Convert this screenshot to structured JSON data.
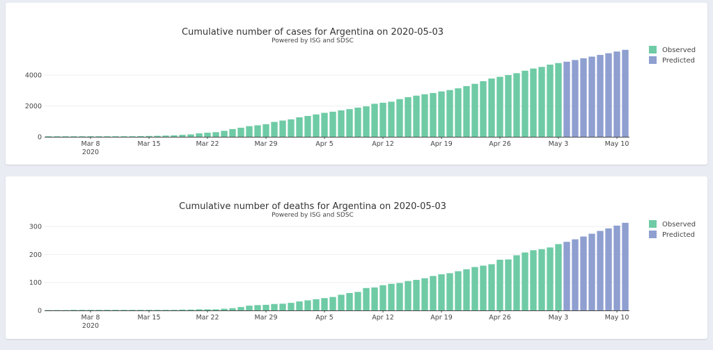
{
  "colors": {
    "observed": "#6ecba5",
    "predicted": "#8e9fd0"
  },
  "chart_data": [
    {
      "type": "bar",
      "title": "Cumulative number of cases for Argentina on 2020-05-03",
      "subtitle": "Powered by ISG and SDSC",
      "x_ticks": [
        "Mar 8",
        "Mar 15",
        "Mar 22",
        "Mar 29",
        "Apr 5",
        "Apr 12",
        "Apr 19",
        "Apr 26",
        "May 3",
        "May 10"
      ],
      "x_year_label": "2020",
      "y_ticks": [
        0,
        2000,
        4000
      ],
      "ylim": [
        0,
        5900
      ],
      "legend": [
        "Observed",
        "Predicted"
      ],
      "legend_position": "top-right",
      "series": [
        {
          "name": "Observed",
          "x": [
            "2020-03-03",
            "2020-03-04",
            "2020-03-05",
            "2020-03-06",
            "2020-03-07",
            "2020-03-08",
            "2020-03-09",
            "2020-03-10",
            "2020-03-11",
            "2020-03-12",
            "2020-03-13",
            "2020-03-14",
            "2020-03-15",
            "2020-03-16",
            "2020-03-17",
            "2020-03-18",
            "2020-03-19",
            "2020-03-20",
            "2020-03-21",
            "2020-03-22",
            "2020-03-23",
            "2020-03-24",
            "2020-03-25",
            "2020-03-26",
            "2020-03-27",
            "2020-03-28",
            "2020-03-29",
            "2020-03-30",
            "2020-03-31",
            "2020-04-01",
            "2020-04-02",
            "2020-04-03",
            "2020-04-04",
            "2020-04-05",
            "2020-04-06",
            "2020-04-07",
            "2020-04-08",
            "2020-04-09",
            "2020-04-10",
            "2020-04-11",
            "2020-04-12",
            "2020-04-13",
            "2020-04-14",
            "2020-04-15",
            "2020-04-16",
            "2020-04-17",
            "2020-04-18",
            "2020-04-19",
            "2020-04-20",
            "2020-04-21",
            "2020-04-22",
            "2020-04-23",
            "2020-04-24",
            "2020-04-25",
            "2020-04-26",
            "2020-04-27",
            "2020-04-28",
            "2020-04-29",
            "2020-04-30",
            "2020-05-01",
            "2020-05-02",
            "2020-05-03"
          ],
          "values": [
            1,
            1,
            2,
            8,
            9,
            12,
            17,
            19,
            21,
            31,
            34,
            45,
            56,
            65,
            79,
            97,
            128,
            158,
            225,
            266,
            301,
            387,
            502,
            589,
            690,
            745,
            820,
            966,
            1054,
            1133,
            1265,
            1353,
            1451,
            1554,
            1628,
            1715,
            1795,
            1894,
            1975,
            2142,
            2208,
            2277,
            2443,
            2571,
            2669,
            2758,
            2839,
            2941,
            3031,
            3144,
            3288,
            3435,
            3607,
            3780,
            3892,
            4003,
            4127,
            4285,
            4428,
            4532,
            4681,
            4783
          ]
        },
        {
          "name": "Predicted",
          "x": [
            "2020-05-04",
            "2020-05-05",
            "2020-05-06",
            "2020-05-07",
            "2020-05-08",
            "2020-05-09",
            "2020-05-10",
            "2020-05-11"
          ],
          "values": [
            4870,
            4980,
            5090,
            5200,
            5310,
            5420,
            5530,
            5640
          ]
        }
      ]
    },
    {
      "type": "bar",
      "title": "Cumulative number of deaths for Argentina on 2020-05-03",
      "subtitle": "Powered by ISG and SDSC",
      "x_ticks": [
        "Mar 8",
        "Mar 15",
        "Mar 22",
        "Mar 29",
        "Apr 5",
        "Apr 12",
        "Apr 19",
        "Apr 26",
        "May 3",
        "May 10"
      ],
      "x_year_label": "2020",
      "y_ticks": [
        0,
        100,
        200,
        300
      ],
      "ylim": [
        0,
        325
      ],
      "legend": [
        "Observed",
        "Predicted"
      ],
      "legend_position": "top-right",
      "series": [
        {
          "name": "Observed",
          "x": [
            "2020-03-03",
            "2020-03-04",
            "2020-03-05",
            "2020-03-06",
            "2020-03-07",
            "2020-03-08",
            "2020-03-09",
            "2020-03-10",
            "2020-03-11",
            "2020-03-12",
            "2020-03-13",
            "2020-03-14",
            "2020-03-15",
            "2020-03-16",
            "2020-03-17",
            "2020-03-18",
            "2020-03-19",
            "2020-03-20",
            "2020-03-21",
            "2020-03-22",
            "2020-03-23",
            "2020-03-24",
            "2020-03-25",
            "2020-03-26",
            "2020-03-27",
            "2020-03-28",
            "2020-03-29",
            "2020-03-30",
            "2020-03-31",
            "2020-04-01",
            "2020-04-02",
            "2020-04-03",
            "2020-04-04",
            "2020-04-05",
            "2020-04-06",
            "2020-04-07",
            "2020-04-08",
            "2020-04-09",
            "2020-04-10",
            "2020-04-11",
            "2020-04-12",
            "2020-04-13",
            "2020-04-14",
            "2020-04-15",
            "2020-04-16",
            "2020-04-17",
            "2020-04-18",
            "2020-04-19",
            "2020-04-20",
            "2020-04-21",
            "2020-04-22",
            "2020-04-23",
            "2020-04-24",
            "2020-04-25",
            "2020-04-26",
            "2020-04-27",
            "2020-04-28",
            "2020-04-29",
            "2020-04-30",
            "2020-05-01",
            "2020-05-02",
            "2020-05-03"
          ],
          "values": [
            0,
            0,
            0,
            1,
            1,
            1,
            2,
            2,
            2,
            2,
            2,
            2,
            2,
            2,
            2,
            2,
            3,
            3,
            4,
            4,
            4,
            6,
            8,
            12,
            17,
            19,
            20,
            23,
            24,
            27,
            32,
            36,
            40,
            44,
            48,
            56,
            62,
            66,
            80,
            82,
            90,
            95,
            98,
            105,
            109,
            115,
            123,
            129,
            133,
            140,
            147,
            155,
            160,
            165,
            181,
            182,
            197,
            207,
            215,
            219,
            225,
            237
          ]
        },
        {
          "name": "Predicted",
          "x": [
            "2020-05-04",
            "2020-05-05",
            "2020-05-06",
            "2020-05-07",
            "2020-05-08",
            "2020-05-09",
            "2020-05-10",
            "2020-05-11"
          ],
          "values": [
            245,
            254,
            264,
            274,
            284,
            293,
            303,
            313
          ]
        }
      ]
    }
  ]
}
